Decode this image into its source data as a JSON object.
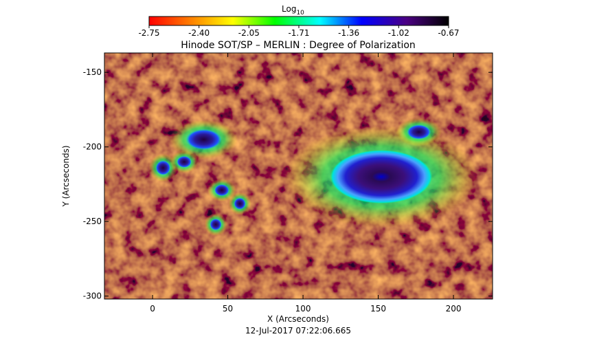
{
  "chart_data": {
    "type": "heatmap",
    "title": "Hinode SOT/SP – MERLIN : Degree of Polarization",
    "xlabel": "X (Arcseconds)",
    "ylabel": "Y (Arcseconds)",
    "xlim": [
      -32,
      226
    ],
    "ylim": [
      -302,
      -137
    ],
    "xticks": [
      0,
      50,
      100,
      150,
      200
    ],
    "yticks": [
      -150,
      -200,
      -250,
      -300
    ],
    "timestamp": "12-Jul-2017 07:22:06.665",
    "colorbar": {
      "label": "Log",
      "label_subscript": "10",
      "ticks": [
        "-2.75",
        "-2.40",
        "-2.05",
        "-1.71",
        "-1.36",
        "-1.02",
        "-0.67"
      ],
      "range": [
        -2.75,
        -0.67
      ],
      "colormap": [
        "#ff0000",
        "#ff8000",
        "#ffff00",
        "#00ff00",
        "#00ffff",
        "#0000ff",
        "#4b0082",
        "#000000"
      ]
    },
    "features": [
      {
        "name": "main spot",
        "x": 152,
        "y": -220,
        "rx": 34,
        "ry": 18,
        "level": -0.67
      },
      {
        "name": "small spot",
        "x": 177,
        "y": -190,
        "rx": 8,
        "ry": 5,
        "level": -0.9
      },
      {
        "name": "pore",
        "x": 7,
        "y": -214,
        "rx": 5,
        "ry": 5,
        "level": -1.0
      },
      {
        "name": "pore",
        "x": 34,
        "y": -195,
        "rx": 12,
        "ry": 7,
        "level": -1.0
      },
      {
        "name": "pore",
        "x": 21,
        "y": -210,
        "rx": 5,
        "ry": 4,
        "level": -1.1
      },
      {
        "name": "pore",
        "x": 58,
        "y": -238,
        "rx": 4,
        "ry": 4,
        "level": -1.1
      },
      {
        "name": "pore",
        "x": 46,
        "y": -229,
        "rx": 5,
        "ry": 4,
        "level": -1.1
      },
      {
        "name": "pore",
        "x": 42,
        "y": -252,
        "rx": 4,
        "ry": 4,
        "level": -1.1
      }
    ]
  }
}
